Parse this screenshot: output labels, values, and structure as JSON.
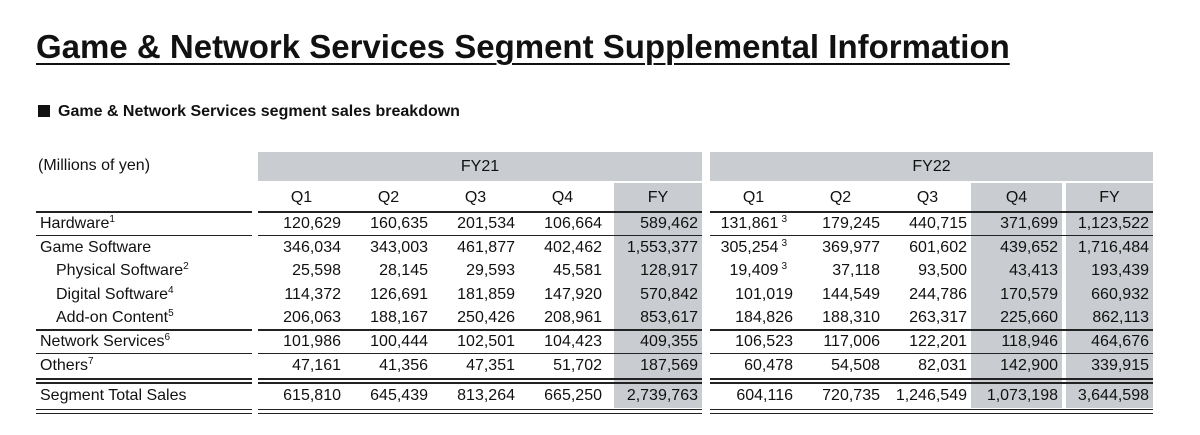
{
  "header": {
    "title": "Game & Network Services Segment Supplemental Information",
    "subtitle": "Game & Network Services segment sales breakdown"
  },
  "table": {
    "unit": "(Millions of yen)",
    "groups": [
      {
        "label": "FY21",
        "columns": [
          "Q1",
          "Q2",
          "Q3",
          "Q4",
          "FY"
        ]
      },
      {
        "label": "FY22",
        "columns": [
          "Q1",
          "Q2",
          "Q3",
          "Q4",
          "FY"
        ]
      }
    ],
    "rows": [
      {
        "label": "Hardware",
        "note": "1",
        "level": 0,
        "cells": [
          "120,629",
          "160,635",
          "201,534",
          "106,664",
          "589,462",
          {
            "text": "131,861",
            "note": "3"
          },
          "179,245",
          "440,715",
          "371,699",
          "1,123,522"
        ]
      },
      {
        "label": "Game Software",
        "level": 0,
        "cells": [
          "346,034",
          "343,003",
          "461,877",
          "402,462",
          "1,553,377",
          {
            "text": "305,254",
            "note": "3"
          },
          "369,977",
          "601,602",
          "439,652",
          "1,716,484"
        ]
      },
      {
        "label": "Physical Software",
        "note": "2",
        "level": 1,
        "cells": [
          "25,598",
          "28,145",
          "29,593",
          "45,581",
          "128,917",
          {
            "text": "19,409",
            "note": "3"
          },
          "37,118",
          "93,500",
          "43,413",
          "193,439"
        ]
      },
      {
        "label": "Digital Software",
        "note": "4",
        "level": 1,
        "cells": [
          "114,372",
          "126,691",
          "181,859",
          "147,920",
          "570,842",
          "101,019",
          "144,549",
          "244,786",
          "170,579",
          "660,932"
        ]
      },
      {
        "label": "Add-on Content",
        "note": "5",
        "level": 1,
        "cells": [
          "206,063",
          "188,167",
          "250,426",
          "208,961",
          "853,617",
          "184,826",
          "188,310",
          "263,317",
          "225,660",
          "862,113"
        ]
      },
      {
        "label": "Network Services",
        "note": "6",
        "level": 0,
        "cells": [
          "101,986",
          "100,444",
          "102,501",
          "104,423",
          "409,355",
          "106,523",
          "117,006",
          "122,201",
          "118,946",
          "464,676"
        ]
      },
      {
        "label": "Others",
        "note": "7",
        "level": 0,
        "cells": [
          "47,161",
          "41,356",
          "47,351",
          "51,702",
          "187,569",
          "60,478",
          "54,508",
          "82,031",
          "142,900",
          "339,915"
        ]
      },
      {
        "label": "Segment Total Sales",
        "level": 0,
        "cells": [
          "615,810",
          "645,439",
          "813,264",
          "665,250",
          "2,739,763",
          "604,116",
          "720,735",
          "1,246,549",
          "1,073,198",
          "3,644,598"
        ]
      }
    ]
  }
}
